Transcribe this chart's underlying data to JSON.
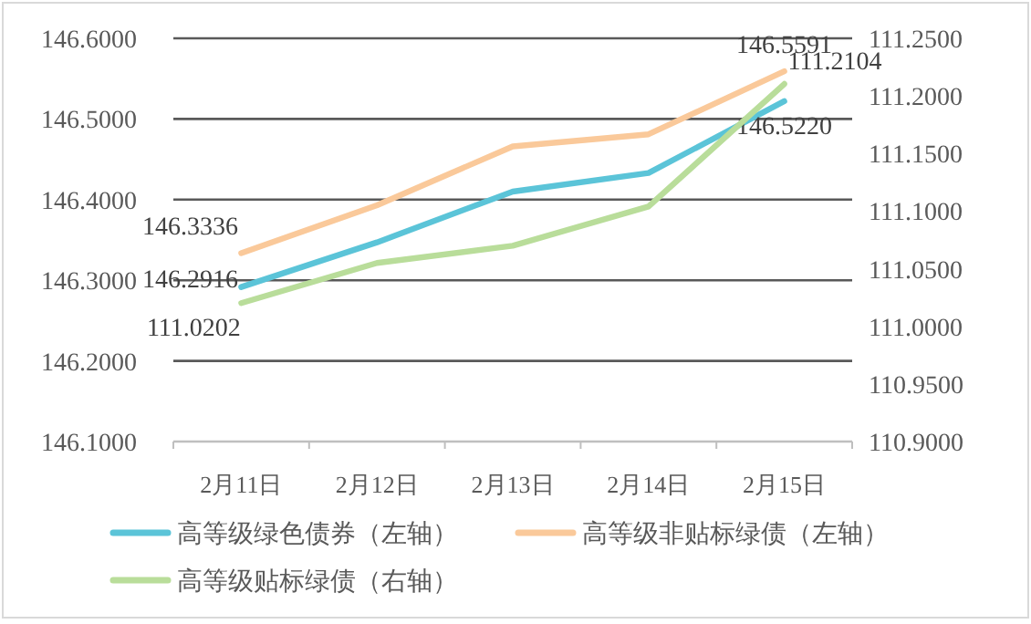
{
  "chart_data": {
    "type": "line",
    "categories": [
      "2月11日",
      "2月12日",
      "2月13日",
      "2月14日",
      "2月15日"
    ],
    "series": [
      {
        "name": "高等级绿色债券（左轴）",
        "color": "#5bc4d8",
        "values": [
          146.2916,
          146.347,
          146.41,
          146.433,
          146.522
        ],
        "value_labels": [
          "146.2916",
          null,
          null,
          null,
          "146.5220"
        ]
      },
      {
        "name": "高等级非贴标绿债（左轴）",
        "color": "#fac99a",
        "values": [
          146.3336,
          146.393,
          146.466,
          146.481,
          146.5591
        ],
        "value_labels": [
          "146.3336",
          null,
          null,
          null,
          "146.5591"
        ]
      },
      {
        "name": "高等级贴标绿债（右轴）",
        "color": "#b9dd9a",
        "axis": "y2",
        "values": [
          111.0202,
          111.055,
          111.07,
          111.104,
          111.2104
        ],
        "value_labels": [
          "111.0202",
          null,
          null,
          null,
          "111.2104"
        ]
      }
    ],
    "ylim": [
      146.1,
      146.6
    ],
    "yticks": [
      {
        "value": 146.1,
        "label": "146.1000"
      },
      {
        "value": 146.2,
        "label": "146.2000"
      },
      {
        "value": 146.3,
        "label": "146.3000"
      },
      {
        "value": 146.4,
        "label": "146.4000"
      },
      {
        "value": 146.5,
        "label": "146.5000"
      },
      {
        "value": 146.6,
        "label": "146.6000"
      }
    ],
    "y2lim": [
      110.9,
      111.25
    ],
    "y2ticks": [
      {
        "value": 110.9,
        "label": "110.9000"
      },
      {
        "value": 110.95,
        "label": "110.9500"
      },
      {
        "value": 111.0,
        "label": "111.0000"
      },
      {
        "value": 111.05,
        "label": "111.0500"
      },
      {
        "value": 111.1,
        "label": "111.1000"
      },
      {
        "value": 111.15,
        "label": "111.1500"
      },
      {
        "value": 111.2,
        "label": "111.2000"
      },
      {
        "value": 111.25,
        "label": "111.2500"
      }
    ],
    "grid": "y",
    "legend": "bottom",
    "marker": "none",
    "line_style": "solid"
  }
}
